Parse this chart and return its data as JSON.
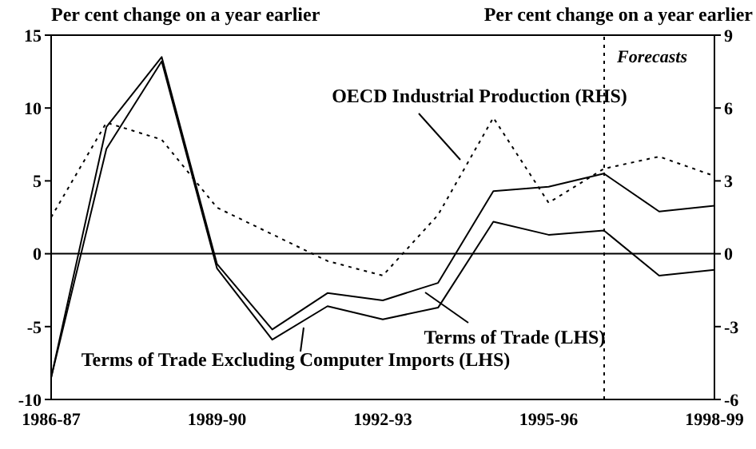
{
  "chart_data": {
    "type": "line",
    "ylabel": "Per cent change on a year earlier",
    "y2label": "Per cent change on a year earlier",
    "categories": [
      "1986-87",
      null,
      null,
      "1989-90",
      null,
      null,
      "1992-93",
      null,
      null,
      "1995-96",
      null,
      null,
      "1998-99"
    ],
    "ylim": [
      -10,
      15
    ],
    "yticks": [
      -10,
      -5,
      0,
      5,
      10,
      15
    ],
    "y2lim": [
      -6,
      9
    ],
    "y2ticks": [
      -6,
      -3,
      0,
      3,
      6,
      9
    ],
    "series": [
      {
        "name": "OECD Industrial Production (RHS)",
        "color": "#000000",
        "axis": "y2",
        "line_style": "dotted",
        "values": [
          1.5,
          5.4,
          4.7,
          1.9,
          0.8,
          -0.3,
          -0.9,
          1.6,
          5.6,
          2.1,
          3.5,
          4.0,
          3.2
        ]
      },
      {
        "name": "Terms of Trade (LHS)",
        "color": "#000000",
        "line_style": "solid",
        "values": [
          -8.5,
          8.7,
          13.5,
          -0.7,
          -5.2,
          -2.7,
          -3.2,
          -2.0,
          4.3,
          4.6,
          5.5,
          2.9,
          3.3
        ]
      },
      {
        "name": "Terms of Trade Excluding Computer Imports (LHS)",
        "color": "#000000",
        "line_style": "solid",
        "values": [
          -8.5,
          7.2,
          13.2,
          -1.0,
          -5.9,
          -3.6,
          -4.5,
          -3.7,
          2.2,
          1.3,
          1.6,
          -1.5,
          -1.1
        ]
      }
    ],
    "ref_lines": [
      {
        "axis": "y",
        "value": 0,
        "color": "#000000",
        "line_style": "solid"
      }
    ],
    "annotations": [
      "Forecasts"
    ],
    "marker": "none",
    "grid": false,
    "legend": "bottom"
  }
}
